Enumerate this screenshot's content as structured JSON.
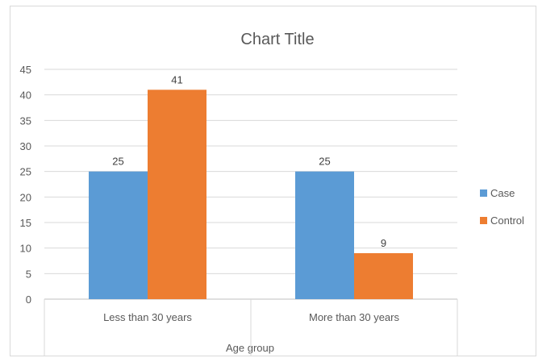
{
  "chart_data": {
    "type": "bar",
    "title": "Chart Title",
    "xlabel": "Age group",
    "ylabel": "",
    "categories": [
      "Less than 30 years",
      "More than 30 years"
    ],
    "series": [
      {
        "name": "Case",
        "values": [
          25,
          25
        ],
        "color": "#5b9bd5"
      },
      {
        "name": "Control",
        "values": [
          41,
          9
        ],
        "color": "#ed7d31"
      }
    ],
    "ylim": [
      0,
      45
    ],
    "yticks": [
      "0",
      "5",
      "10",
      "15",
      "20",
      "25",
      "30",
      "35",
      "40",
      "45"
    ],
    "grid": true,
    "legend_position": "right"
  }
}
